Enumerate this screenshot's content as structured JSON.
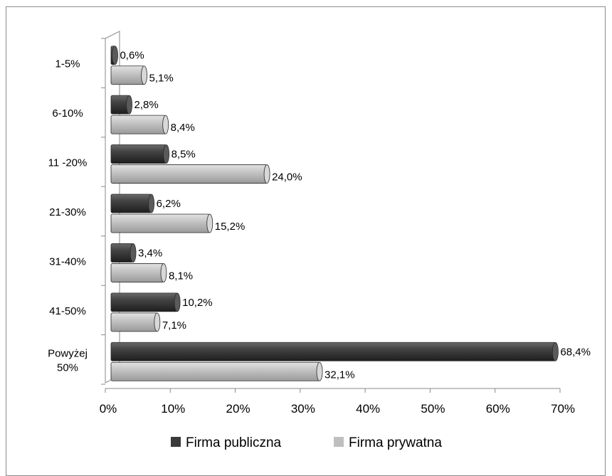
{
  "chart_data": {
    "type": "bar",
    "orientation": "horizontal",
    "categories": [
      "1-5%",
      "6-10%",
      "11 -20%",
      "21-30%",
      "31-40%",
      "41-50%",
      "Powyżej 50%"
    ],
    "category_lines": [
      [
        "1-5%"
      ],
      [
        "6-10%"
      ],
      [
        "11 -20%"
      ],
      [
        "21-30%"
      ],
      [
        "31-40%"
      ],
      [
        "41-50%"
      ],
      [
        "Powyżej",
        "50%"
      ]
    ],
    "series": [
      {
        "name": "Firma publiczna",
        "color": "#3a3a3a",
        "values": [
          0.6,
          2.8,
          8.5,
          6.2,
          3.4,
          10.2,
          68.4
        ],
        "labels": [
          "0,6%",
          "2,8%",
          "8,5%",
          "6,2%",
          "3,4%",
          "10,2%",
          "68,4%"
        ]
      },
      {
        "name": "Firma prywatna",
        "color": "#bfbfbf",
        "values": [
          5.1,
          8.4,
          24.0,
          15.2,
          8.1,
          7.1,
          32.1
        ],
        "labels": [
          "5,1%",
          "8,4%",
          "24,0%",
          "15,2%",
          "8,1%",
          "7,1%",
          "32,1%"
        ]
      }
    ],
    "xlim": [
      0,
      70
    ],
    "xticks": [
      0,
      10,
      20,
      30,
      40,
      50,
      60,
      70
    ],
    "xtick_labels": [
      "0%",
      "10%",
      "20%",
      "30%",
      "40%",
      "50%",
      "60%",
      "70%"
    ],
    "grid": false,
    "legend_position": "bottom",
    "title": "",
    "xlabel": "",
    "ylabel": ""
  }
}
